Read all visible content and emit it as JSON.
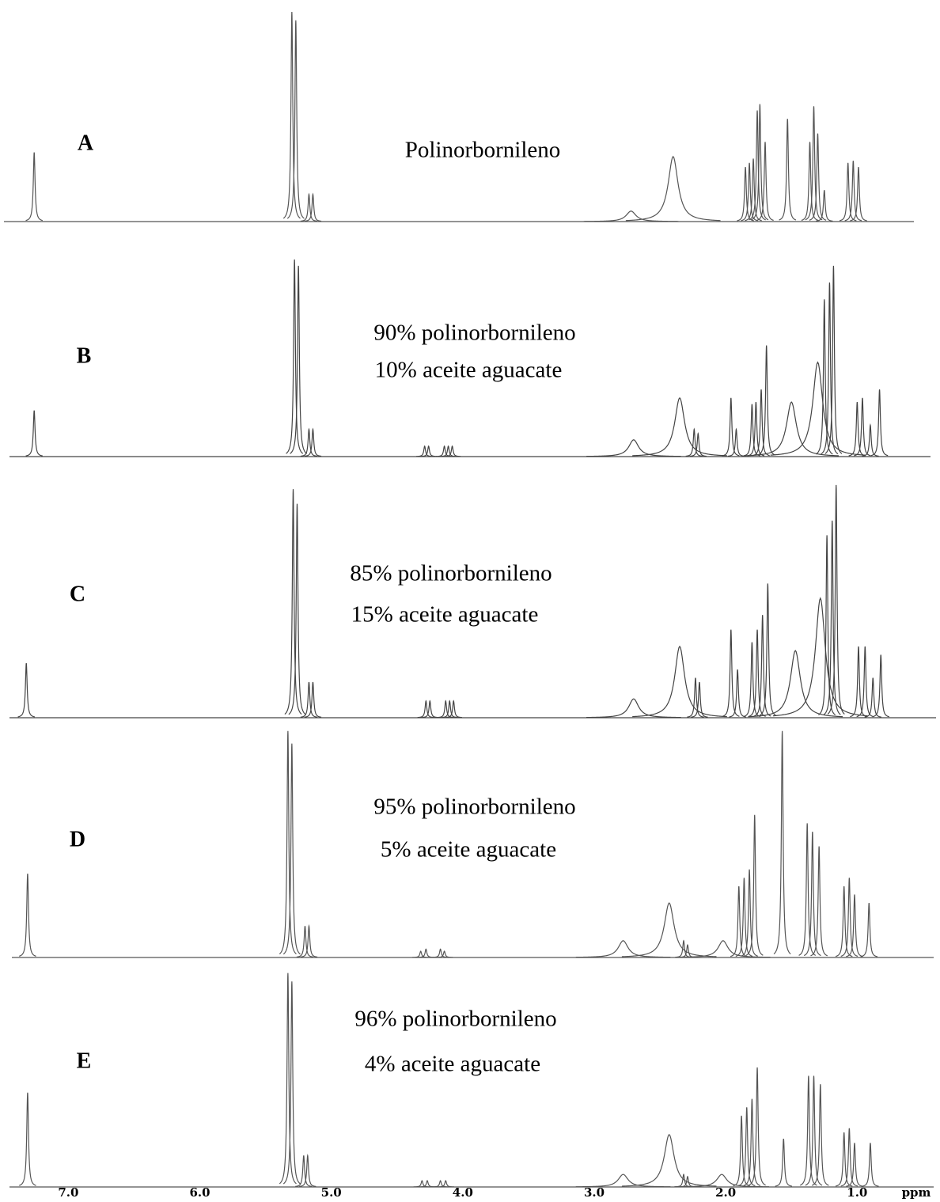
{
  "chart_data": {
    "type": "spectrum",
    "xlabel": "ppm",
    "xlim": [
      7.52,
      0.37
    ],
    "xticks": [
      {
        "value": 7,
        "label": "7.0"
      },
      {
        "value": 6,
        "label": "6.0"
      },
      {
        "value": 5,
        "label": "5.0"
      },
      {
        "value": 4,
        "label": "4.0"
      },
      {
        "value": 3,
        "label": "3.0"
      },
      {
        "value": 2,
        "label": "2.0"
      },
      {
        "value": 1,
        "label": "1.0"
      }
    ],
    "series": [
      {
        "name": "A",
        "label": [
          "Polinorbornileno"
        ],
        "color": "#555555",
        "x": [
          7.26,
          5.3,
          5.27,
          5.17,
          5.14,
          1.85,
          1.82,
          1.79,
          1.76,
          1.74,
          1.7,
          1.53,
          1.36,
          1.33,
          1.3,
          1.25,
          1.07,
          1.03,
          0.99
        ],
        "values": [
          33,
          100,
          96,
          13,
          13,
          26,
          28,
          30,
          53,
          56,
          38,
          49,
          38,
          55,
          42,
          15,
          28,
          29,
          26
        ],
        "broad_x": [
          2.72,
          2.4
        ],
        "broad_values": [
          5,
          31
        ]
      },
      {
        "name": "B",
        "label": [
          "90% polinorbornileno",
          "10% aceite aguacate"
        ],
        "color": "#444444",
        "x": [
          7.26,
          5.28,
          5.25,
          5.17,
          5.14,
          4.29,
          4.26,
          4.14,
          4.11,
          4.08,
          2.24,
          2.21,
          1.96,
          1.92,
          1.8,
          1.77,
          1.73,
          1.69,
          1.25,
          1.21,
          1.18,
          1.0,
          0.96,
          0.9,
          0.83
        ],
        "values": [
          22,
          94,
          91,
          13,
          13,
          5,
          5,
          5,
          5,
          5,
          13,
          11,
          28,
          13,
          25,
          26,
          32,
          53,
          75,
          83,
          91,
          26,
          28,
          15,
          32
        ],
        "broad_x": [
          2.7,
          2.35,
          1.5,
          1.3
        ],
        "broad_values": [
          8,
          28,
          26,
          45
        ]
      },
      {
        "name": "C",
        "label": [
          "85% polinorbornileno",
          "15% aceite aguacate"
        ],
        "color": "#444444",
        "x": [
          7.32,
          5.29,
          5.26,
          5.17,
          5.14,
          4.28,
          4.25,
          4.13,
          4.1,
          4.07,
          2.23,
          2.2,
          1.96,
          1.91,
          1.8,
          1.76,
          1.72,
          1.68,
          1.23,
          1.19,
          1.16,
          0.99,
          0.94,
          0.88,
          0.82
        ],
        "values": [
          26,
          109,
          102,
          17,
          17,
          8,
          8,
          8,
          8,
          8,
          19,
          17,
          42,
          23,
          36,
          42,
          49,
          64,
          87,
          94,
          111,
          34,
          34,
          19,
          30
        ],
        "broad_x": [
          2.7,
          2.35,
          1.47,
          1.28
        ],
        "broad_values": [
          9,
          34,
          32,
          57
        ]
      },
      {
        "name": "D",
        "label": [
          "95% polinorbornileno",
          "5% aceite aguacate"
        ],
        "color": "#555555",
        "x": [
          7.31,
          5.33,
          5.3,
          5.2,
          5.17,
          4.32,
          4.28,
          4.17,
          4.14,
          2.32,
          2.29,
          1.9,
          1.86,
          1.82,
          1.78,
          1.57,
          1.38,
          1.34,
          1.29,
          1.1,
          1.06,
          1.02,
          0.91
        ],
        "values": [
          40,
          108,
          102,
          15,
          15,
          3,
          4,
          4,
          3,
          8,
          6,
          34,
          38,
          42,
          68,
          108,
          64,
          60,
          53,
          34,
          38,
          30,
          26
        ],
        "broad_x": [
          2.78,
          2.43,
          2.02
        ],
        "broad_values": [
          8,
          26,
          8
        ]
      },
      {
        "name": "E",
        "label": [
          "96% polinorbornileno",
          "4% aceite aguacate"
        ],
        "color": "#555555",
        "x": [
          7.31,
          5.33,
          5.3,
          5.21,
          5.18,
          4.31,
          4.27,
          4.17,
          4.13,
          2.32,
          2.29,
          1.88,
          1.84,
          1.8,
          1.76,
          1.56,
          1.37,
          1.33,
          1.28,
          1.1,
          1.06,
          1.02,
          0.9
        ],
        "values": [
          45,
          102,
          98,
          15,
          15,
          3,
          3,
          3,
          3,
          6,
          5,
          34,
          38,
          42,
          57,
          23,
          53,
          53,
          49,
          26,
          28,
          21,
          21
        ],
        "broad_x": [
          2.78,
          2.43,
          2.03
        ],
        "broad_values": [
          6,
          25,
          6
        ]
      }
    ]
  }
}
